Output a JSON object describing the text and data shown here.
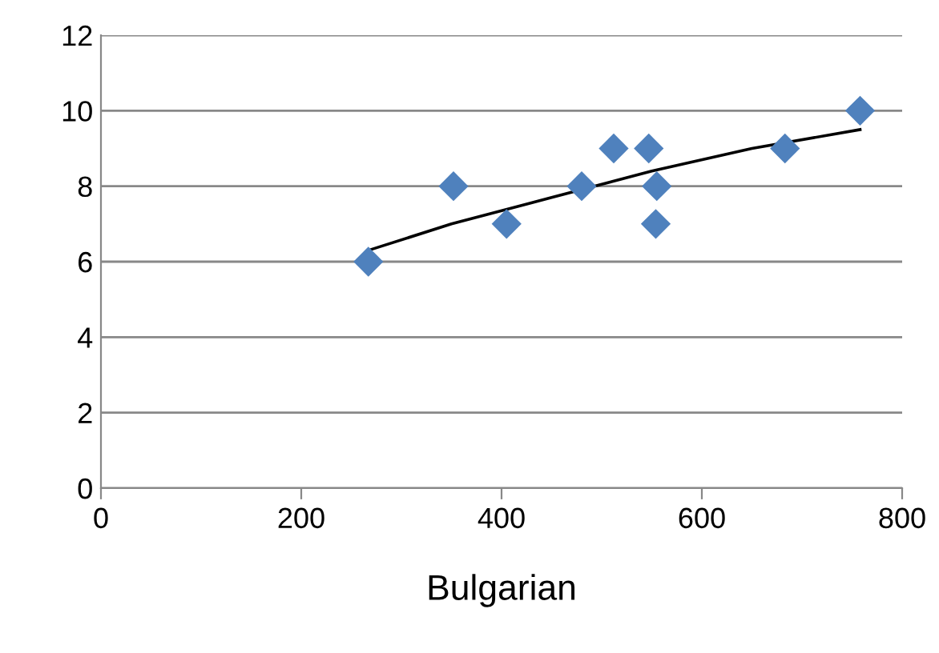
{
  "chart_data": {
    "type": "scatter",
    "xlabel": "Bulgarian",
    "series": [
      {
        "color": "#4f81bd",
        "marker": "diamond",
        "x": [
          267,
          352,
          405,
          480,
          512,
          547,
          555,
          554,
          683,
          758
        ],
        "values": [
          6,
          8,
          7,
          8,
          9,
          9,
          8,
          7,
          9,
          10
        ]
      },
      {
        "type": "line",
        "color": "#000000",
        "marker": "none",
        "x": [
          267,
          350,
          450,
          550,
          650,
          758
        ],
        "values": [
          6.3,
          7.0,
          7.7,
          8.4,
          9.0,
          9.5
        ]
      }
    ],
    "xlim": [
      0,
      800
    ],
    "xticks": [
      0,
      200,
      400,
      600,
      800
    ],
    "ylim": [
      0,
      12
    ],
    "yticks": [
      0,
      2,
      4,
      6,
      8,
      10,
      12
    ],
    "grid": "y",
    "legend": false
  }
}
